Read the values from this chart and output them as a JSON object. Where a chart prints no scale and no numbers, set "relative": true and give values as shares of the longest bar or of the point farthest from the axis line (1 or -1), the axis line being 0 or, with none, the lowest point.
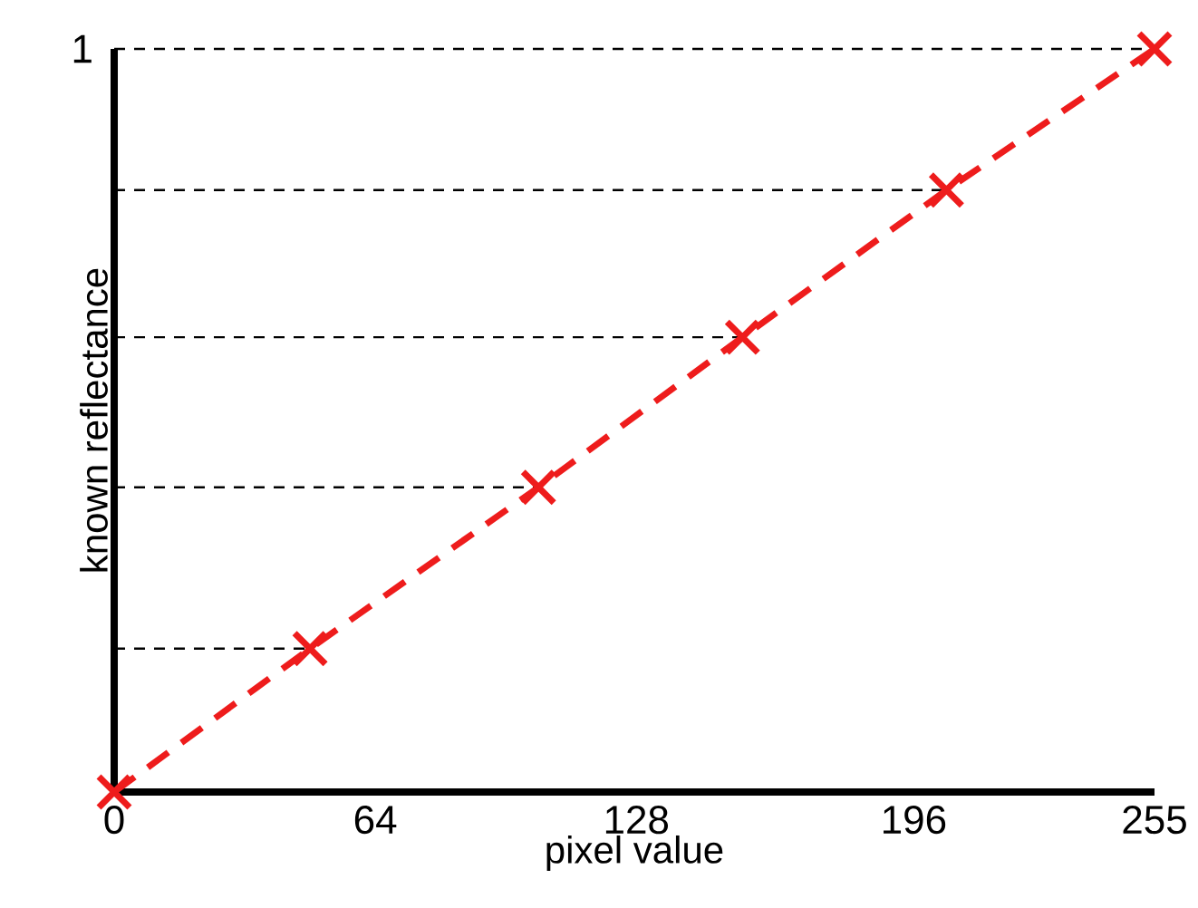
{
  "chart_data": {
    "type": "line",
    "relative": true,
    "xlabel": "pixel value",
    "ylabel": "known reflectance",
    "xlim": [
      0,
      255
    ],
    "xticks": [
      0,
      64,
      128,
      196,
      255
    ],
    "series": [
      {
        "x": [
          0,
          48,
          104,
          154,
          204,
          255
        ],
        "values": [
          0,
          0.193,
          0.41,
          0.612,
          0.81,
          1
        ],
        "color": "#ee1c1c"
      }
    ],
    "marker": "cross",
    "line_style": "dashed",
    "grid": false,
    "ref_lines": [
      {
        "axis": "y",
        "value": 0.193,
        "color": "#000000",
        "line_style": "dashed"
      },
      {
        "axis": "y",
        "value": 0.41,
        "color": "#000000",
        "line_style": "dashed"
      },
      {
        "axis": "y",
        "value": 0.612,
        "color": "#000000",
        "line_style": "dashed"
      },
      {
        "axis": "y",
        "value": 0.81,
        "color": "#000000",
        "line_style": "dashed"
      },
      {
        "axis": "y",
        "value": 1,
        "color": "#000000",
        "line_style": "dashed"
      }
    ],
    "annotations": [
      "1"
    ]
  }
}
